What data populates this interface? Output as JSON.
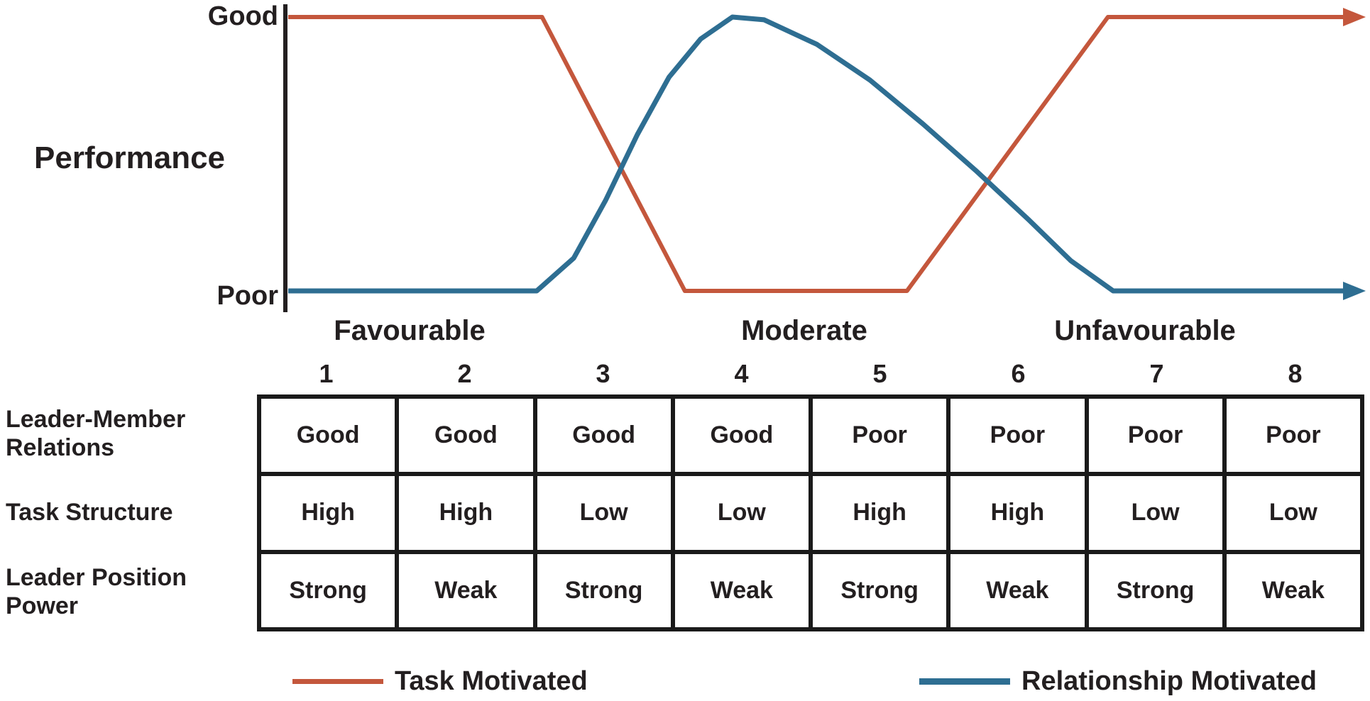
{
  "chart": {
    "ylabel": "Performance",
    "y_top_label": "Good",
    "y_bottom_label": "Poor",
    "x_labels": [
      "Favourable",
      "Moderate",
      "Unfavourable"
    ]
  },
  "chart_data": {
    "type": "line",
    "title": "",
    "ylabel": "Performance",
    "y_axis_tick_labels": [
      "Good",
      "Poor"
    ],
    "x_axis_tick_labels": [
      "Favourable",
      "Moderate",
      "Unfavourable"
    ],
    "y_scale_note": "normalized points: y 0 = Poor, y 1 = Good; x 0-100 across situational favourableness axis",
    "arrows_at_line_ends": true,
    "series": [
      {
        "name": "Task Motivated",
        "color": "#c4573c",
        "stroke_width": 6,
        "points": [
          [
            0,
            1
          ],
          [
            24,
            1
          ],
          [
            37.5,
            0
          ],
          [
            58.5,
            0
          ],
          [
            77.5,
            1
          ],
          [
            100,
            1
          ]
        ]
      },
      {
        "name": "Relationship Motivated",
        "color": "#2e6e92",
        "stroke_width": 7,
        "points": [
          [
            0,
            0
          ],
          [
            23.5,
            0
          ],
          [
            27,
            0.12
          ],
          [
            30,
            0.33
          ],
          [
            33,
            0.57
          ],
          [
            36,
            0.78
          ],
          [
            39,
            0.92
          ],
          [
            42,
            1
          ],
          [
            45,
            0.99
          ],
          [
            50,
            0.9
          ],
          [
            55,
            0.77
          ],
          [
            60,
            0.61
          ],
          [
            65,
            0.44
          ],
          [
            70,
            0.26
          ],
          [
            74,
            0.11
          ],
          [
            78,
            0
          ],
          [
            100,
            0
          ]
        ]
      }
    ]
  },
  "table": {
    "column_headers": [
      "1",
      "2",
      "3",
      "4",
      "5",
      "6",
      "7",
      "8"
    ],
    "row_labels": [
      "Leader-Member Relations",
      "Task Structure",
      "Leader Position Power"
    ],
    "rows": [
      [
        "Good",
        "Good",
        "Good",
        "Good",
        "Poor",
        "Poor",
        "Poor",
        "Poor"
      ],
      [
        "High",
        "High",
        "Low",
        "Low",
        "High",
        "High",
        "Low",
        "Low"
      ],
      [
        "Strong",
        "Weak",
        "Strong",
        "Weak",
        "Strong",
        "Weak",
        "Strong",
        "Weak"
      ]
    ]
  },
  "legend": {
    "items": [
      {
        "label": "Task Motivated",
        "color": "#c4573c"
      },
      {
        "label": "Relationship Motivated",
        "color": "#2e6e92"
      }
    ]
  }
}
